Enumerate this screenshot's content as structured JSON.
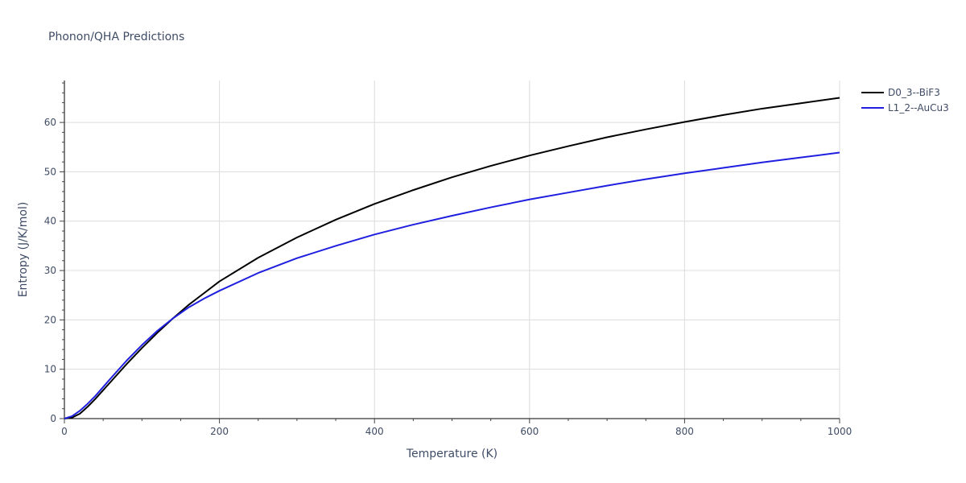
{
  "chart_data": {
    "type": "line",
    "title": "Phonon/QHA Predictions",
    "xlabel": "Temperature (K)",
    "ylabel": "Entropy (J/K/mol)",
    "xlim": [
      0,
      1000
    ],
    "ylim": [
      0,
      68.5
    ],
    "xticks": [
      0,
      200,
      400,
      600,
      800,
      1000
    ],
    "yticks": [
      0,
      10,
      20,
      30,
      40,
      50,
      60
    ],
    "grid": true,
    "legend_position": "top-right",
    "series": [
      {
        "name": "D0_3--BiF3",
        "color": "#000000",
        "x": [
          0,
          10,
          20,
          30,
          40,
          60,
          80,
          100,
          120,
          140,
          160,
          180,
          200,
          250,
          300,
          350,
          400,
          450,
          500,
          550,
          600,
          650,
          700,
          750,
          800,
          850,
          900,
          950,
          1000
        ],
        "y": [
          0,
          0.2,
          1.0,
          2.4,
          4.0,
          7.5,
          11.0,
          14.3,
          17.4,
          20.3,
          23.0,
          25.4,
          27.8,
          32.6,
          36.7,
          40.3,
          43.5,
          46.3,
          48.9,
          51.2,
          53.3,
          55.2,
          57.0,
          58.6,
          60.1,
          61.5,
          62.8,
          63.9,
          65.0
        ]
      },
      {
        "name": "L1_2--AuCu3",
        "color": "#1f1fe0",
        "x": [
          0,
          10,
          20,
          30,
          40,
          60,
          80,
          100,
          120,
          140,
          160,
          180,
          200,
          250,
          300,
          350,
          400,
          450,
          500,
          550,
          600,
          650,
          700,
          750,
          800,
          850,
          900,
          950,
          1000
        ],
        "y": [
          0,
          0.5,
          1.6,
          3.0,
          4.6,
          8.2,
          11.7,
          14.9,
          17.8,
          20.3,
          22.5,
          24.3,
          25.9,
          29.5,
          32.5,
          35.0,
          37.3,
          39.3,
          41.1,
          42.8,
          44.4,
          45.8,
          47.2,
          48.5,
          49.7,
          50.8,
          51.9,
          52.9,
          53.9
        ]
      }
    ]
  }
}
